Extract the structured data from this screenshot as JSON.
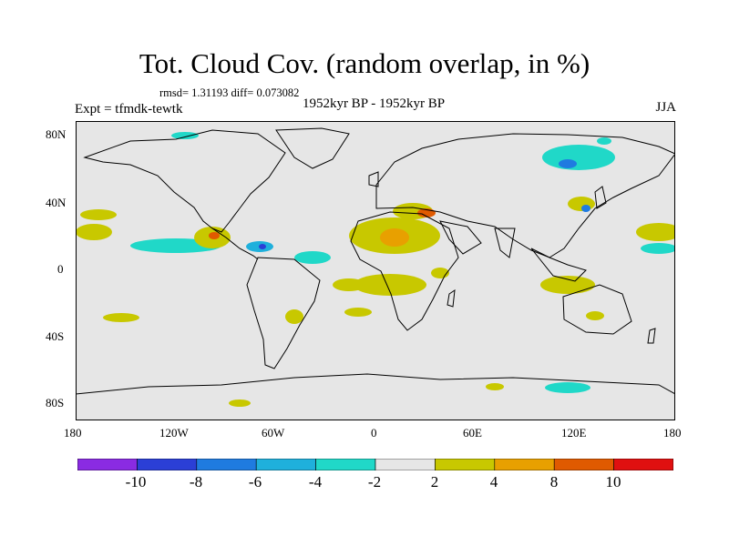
{
  "title": "Tot. Cloud Cov. (random overlap, in %)",
  "stats_line": "rmsd= 1.31193 diff= 0.073082",
  "expt_label": "Expt = tfmdk-tewtk",
  "period_label": "1952kyr BP - 1952kyr BP",
  "season_label": "JJA",
  "y_ticks": [
    "80N",
    "40N",
    "0",
    "40S",
    "80S"
  ],
  "x_ticks": [
    "180",
    "120W",
    "60W",
    "0",
    "60E",
    "120E",
    "180"
  ],
  "colorbar": {
    "colors": [
      "#8a2be2",
      "#2b3fd6",
      "#1f7be0",
      "#1fb0dc",
      "#20d8c8",
      "#e6e6e6",
      "#c8c800",
      "#e8a000",
      "#e05a00",
      "#e01010"
    ],
    "labels": [
      "-10",
      "-8",
      "-6",
      "-4",
      "-2",
      "2",
      "4",
      "8",
      "10"
    ]
  },
  "map_colors": {
    "land_background": "#e6e6e6",
    "coast": "#000000"
  }
}
